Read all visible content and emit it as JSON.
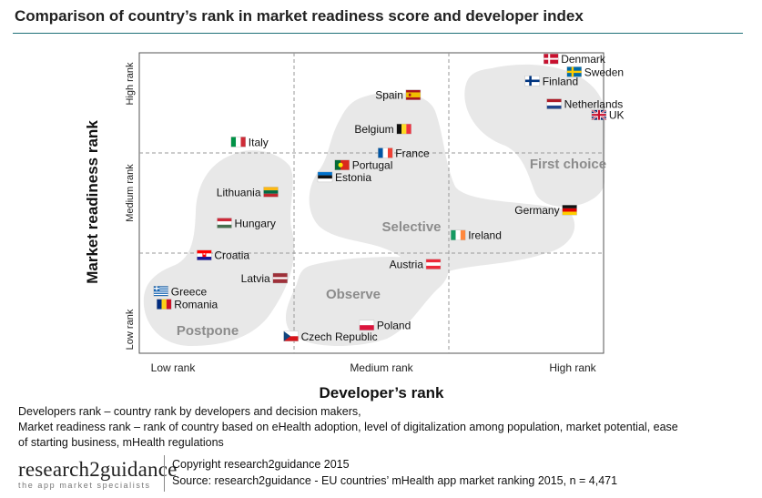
{
  "title": "Comparison of country’s rank in market readiness score and developer index",
  "chart_data": {
    "type": "scatter",
    "xlabel": "Developer’s rank",
    "ylabel": "Market readiness rank",
    "x_ticks": [
      "Low rank",
      "Medium rank",
      "High rank"
    ],
    "y_ticks": [
      "Low rank",
      "Medium rank",
      "High rank"
    ],
    "grid": "dashed tercile lines",
    "clusters": [
      {
        "label": "First choice",
        "countries": [
          "Denmark",
          "Sweden",
          "Finland",
          "Netherlands",
          "UK"
        ]
      },
      {
        "label": "Selective",
        "countries": [
          "Spain",
          "Belgium",
          "France",
          "Portugal",
          "Estonia",
          "Germany",
          "Ireland"
        ]
      },
      {
        "label": "Observe",
        "countries": [
          "Latvia",
          "Austria",
          "Poland",
          "Czech Republic"
        ]
      },
      {
        "label": "Postpone",
        "countries": [
          "Italy",
          "Lithuania",
          "Hungary",
          "Croatia",
          "Greece",
          "Romania"
        ]
      }
    ],
    "points": [
      {
        "name": "Denmark",
        "x": 2.66,
        "y": 2.94,
        "flag": "dk",
        "side": "right"
      },
      {
        "name": "Sweden",
        "x": 2.81,
        "y": 2.81,
        "flag": "se",
        "side": "right"
      },
      {
        "name": "Finland",
        "x": 2.54,
        "y": 2.72,
        "flag": "fi",
        "side": "right"
      },
      {
        "name": "Netherlands",
        "x": 2.68,
        "y": 2.49,
        "flag": "nl",
        "side": "right"
      },
      {
        "name": "UK",
        "x": 2.97,
        "y": 2.38,
        "flag": "gb",
        "side": "right"
      },
      {
        "name": "Spain",
        "x": 1.77,
        "y": 2.58,
        "flag": "es",
        "side": "left"
      },
      {
        "name": "Belgium",
        "x": 1.71,
        "y": 2.24,
        "flag": "be",
        "side": "left"
      },
      {
        "name": "France",
        "x": 1.59,
        "y": 2.0,
        "flag": "fr",
        "side": "right"
      },
      {
        "name": "Portugal",
        "x": 1.31,
        "y": 1.88,
        "flag": "pt",
        "side": "right"
      },
      {
        "name": "Estonia",
        "x": 1.2,
        "y": 1.76,
        "flag": "ee",
        "side": "right"
      },
      {
        "name": "Germany",
        "x": 2.78,
        "y": 1.43,
        "flag": "de",
        "side": "left"
      },
      {
        "name": "Ireland",
        "x": 2.06,
        "y": 1.18,
        "flag": "ie",
        "side": "right"
      },
      {
        "name": "Italy",
        "x": 0.64,
        "y": 2.11,
        "flag": "it",
        "side": "right"
      },
      {
        "name": "Lithuania",
        "x": 0.85,
        "y": 1.61,
        "flag": "lt",
        "side": "left"
      },
      {
        "name": "Hungary",
        "x": 0.55,
        "y": 1.3,
        "flag": "hu",
        "side": "right"
      },
      {
        "name": "Croatia",
        "x": 0.42,
        "y": 0.98,
        "flag": "hr",
        "side": "right"
      },
      {
        "name": "Latvia",
        "x": 0.91,
        "y": 0.75,
        "flag": "lv",
        "side": "left"
      },
      {
        "name": "Austria",
        "x": 1.9,
        "y": 0.89,
        "flag": "at",
        "side": "left"
      },
      {
        "name": "Greece",
        "x": 0.14,
        "y": 0.62,
        "flag": "gr",
        "side": "right"
      },
      {
        "name": "Romania",
        "x": 0.16,
        "y": 0.49,
        "flag": "ro",
        "side": "right"
      },
      {
        "name": "Poland",
        "x": 1.47,
        "y": 0.28,
        "flag": "pl",
        "side": "right"
      },
      {
        "name": "Czech Republic",
        "x": 0.98,
        "y": 0.17,
        "flag": "cz",
        "side": "right"
      }
    ]
  },
  "footnotes": [
    "Developers rank – country rank by developers and decision makers,",
    "Market readiness rank –  rank of country based on eHealth adoption, level of digitalization among population, market potential, ease",
    "of starting business, mHealth regulations"
  ],
  "brand": {
    "name": "research2guidance",
    "tagline": "the app market specialists"
  },
  "copyright": "Copyright research2guidance 2015",
  "source": "Source: research2guidance - EU countries’ mHealth app market ranking 2015, n = 4,471",
  "colors": {
    "blob": "#e8e8e8",
    "cluster_label": "#8c8c8c",
    "rule": "#1f6f78"
  }
}
